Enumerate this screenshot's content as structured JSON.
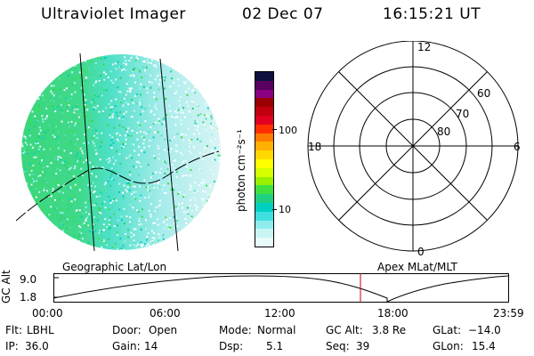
{
  "header": {
    "instrument": "Ultraviolet Imager",
    "date": "02 Dec 07",
    "time": "16:15:21 UT"
  },
  "colorbar": {
    "unit_label": "photon cm⁻²s⁻¹",
    "ticks": [
      "100",
      "10"
    ],
    "colors": [
      "#101040",
      "#5a0060",
      "#8a0080",
      "#9a0000",
      "#c00010",
      "#e00020",
      "#ff3000",
      "#ff7a00",
      "#ffb000",
      "#ffd800",
      "#ffff00",
      "#d8ff00",
      "#98f000",
      "#40e040",
      "#20d080",
      "#00d0c0",
      "#40e0e0",
      "#90ecec",
      "#c8f4f4",
      "#e8fafa"
    ]
  },
  "polar_plot": {
    "mlt_labels": {
      "top": "12",
      "left": "18",
      "right": "6",
      "bottom": "0"
    },
    "lat_labels": [
      "60",
      "70",
      "80"
    ]
  },
  "timeline": {
    "left_title": "Geographic Lat/Lon",
    "right_title": "Apex MLat/MLT",
    "axis_label": "GC Alt",
    "y_ticks": [
      "9.0",
      "1.8"
    ],
    "x_ticks": [
      "00:00",
      "06:00",
      "12:00",
      "18:00",
      "23:59"
    ]
  },
  "status": {
    "row1": [
      {
        "key": "Flt:",
        "value": "LBHL"
      },
      {
        "key": "Door:",
        "value": "Open"
      },
      {
        "key": "Mode:",
        "value": "Normal"
      },
      {
        "key": "GC Alt:",
        "value": "3.8 Re"
      },
      {
        "key": "GLat:",
        "value": "−14.0"
      }
    ],
    "row2": [
      {
        "key": "IP:",
        "value": "36.0"
      },
      {
        "key": "Gain:",
        "value": "14"
      },
      {
        "key": "Dsp:",
        "value": "5.1"
      },
      {
        "key": "Seq:",
        "value": "39"
      },
      {
        "key": "GLon:",
        "value": "15.4"
      }
    ]
  }
}
